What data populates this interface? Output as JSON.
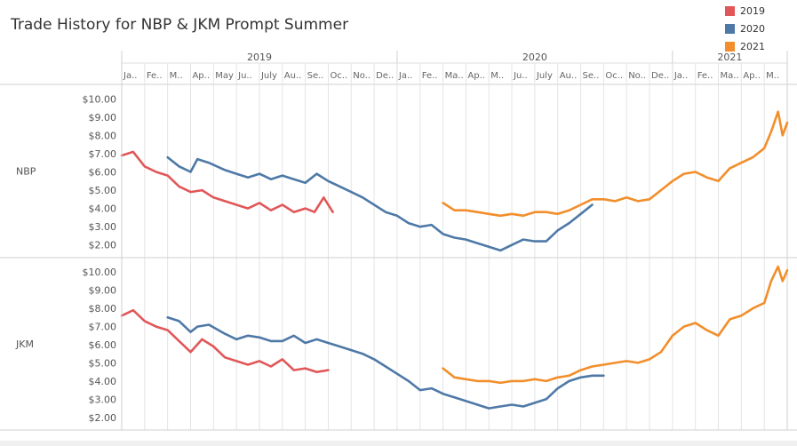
{
  "title": "Trade History for NBP & JKM Prompt Summer",
  "legend": [
    {
      "label": "2019",
      "color": "#e15759"
    },
    {
      "label": "2020",
      "color": "#4e79a7"
    },
    {
      "label": "2021",
      "color": "#f28e2b"
    }
  ],
  "chart_data": {
    "type": "line",
    "title": "Trade History for NBP & JKM Prompt Summer",
    "years": [
      {
        "label": "2019",
        "start": 0,
        "end": 12
      },
      {
        "label": "2020",
        "start": 12,
        "end": 24
      },
      {
        "label": "2021",
        "start": 24,
        "end": 29
      }
    ],
    "x_unit": "month index from January 2019",
    "xlim": [
      0,
      29
    ],
    "month_ticks": [
      "Ja..",
      "Fe..",
      "M..",
      "Ap..",
      "May",
      "Ju..",
      "July",
      "Au..",
      "Se..",
      "Oc..",
      "No..",
      "De..",
      "Ja..",
      "Fe..",
      "Ma..",
      "Ap..",
      "M..",
      "Ju..",
      "July",
      "Au..",
      "Se..",
      "Oc..",
      "No..",
      "De..",
      "Ja..",
      "Fe..",
      "Ma..",
      "Ap..",
      "M.."
    ],
    "ylim": [
      1.5,
      10.5
    ],
    "y_ticks": [
      "$10.00",
      "$9.00",
      "$8.00",
      "$7.00",
      "$6.00",
      "$5.00",
      "$4.00",
      "$3.00",
      "$2.00"
    ],
    "y_tick_values": [
      10,
      9,
      8,
      7,
      6,
      5,
      4,
      3,
      2
    ],
    "grid": true,
    "legend_position": "top-right",
    "panels": [
      {
        "label": "NBP",
        "series": [
          {
            "name": "2019",
            "color": "#e15759",
            "x": [
              0,
              0.5,
              1,
              1.5,
              2,
              2.5,
              3,
              3.5,
              4,
              4.5,
              5,
              5.5,
              6,
              6.5,
              7,
              7.5,
              8,
              8.4,
              8.8,
              9.2
            ],
            "y": [
              6.9,
              7.1,
              6.3,
              6.0,
              5.8,
              5.2,
              4.9,
              5.0,
              4.6,
              4.4,
              4.2,
              4.0,
              4.3,
              3.9,
              4.2,
              3.8,
              4.0,
              3.8,
              4.6,
              3.8
            ]
          },
          {
            "name": "2020",
            "color": "#4e79a7",
            "x": [
              2,
              2.5,
              3,
              3.3,
              3.8,
              4.5,
              5,
              5.5,
              6,
              6.5,
              7,
              7.5,
              8,
              8.5,
              9,
              9.5,
              10,
              10.5,
              11,
              11.5,
              12,
              12.5,
              13,
              13.5,
              14,
              14.5,
              15,
              15.5,
              16,
              16.5,
              17,
              17.5,
              18,
              18.5,
              19,
              19.5,
              20,
              20.5
            ],
            "y": [
              6.8,
              6.3,
              6.0,
              6.7,
              6.5,
              6.1,
              5.9,
              5.7,
              5.9,
              5.6,
              5.8,
              5.6,
              5.4,
              5.9,
              5.5,
              5.2,
              4.9,
              4.6,
              4.2,
              3.8,
              3.6,
              3.2,
              3.0,
              3.1,
              2.6,
              2.4,
              2.3,
              2.1,
              1.9,
              1.7,
              2.0,
              2.3,
              2.2,
              2.2,
              2.8,
              3.2,
              3.7,
              4.2
            ]
          },
          {
            "name": "2021",
            "color": "#f28e2b",
            "x": [
              14,
              14.5,
              15,
              15.5,
              16,
              16.5,
              17,
              17.5,
              18,
              18.5,
              19,
              19.5,
              20,
              20.5,
              21,
              21.5,
              22,
              22.5,
              23,
              23.5,
              24,
              24.5,
              25,
              25.5,
              26,
              26.5,
              27,
              27.5,
              28,
              28.3,
              28.6,
              28.8,
              29
            ],
            "y": [
              4.3,
              3.9,
              3.9,
              3.8,
              3.7,
              3.6,
              3.7,
              3.6,
              3.8,
              3.8,
              3.7,
              3.9,
              4.2,
              4.5,
              4.5,
              4.4,
              4.6,
              4.4,
              4.5,
              5.0,
              5.5,
              5.9,
              6.0,
              5.7,
              5.5,
              6.2,
              6.5,
              6.8,
              7.3,
              8.2,
              9.3,
              8.0,
              8.7
            ]
          }
        ]
      },
      {
        "label": "JKM",
        "series": [
          {
            "name": "2019",
            "color": "#e15759",
            "x": [
              0,
              0.5,
              1,
              1.5,
              2,
              2.5,
              3,
              3.5,
              4,
              4.5,
              5,
              5.5,
              6,
              6.5,
              7,
              7.5,
              8,
              8.5,
              9
            ],
            "y": [
              7.6,
              7.9,
              7.3,
              7.0,
              6.8,
              6.2,
              5.6,
              6.3,
              5.9,
              5.3,
              5.1,
              4.9,
              5.1,
              4.8,
              5.2,
              4.6,
              4.7,
              4.5,
              4.6
            ]
          },
          {
            "name": "2020",
            "color": "#4e79a7",
            "x": [
              2,
              2.5,
              3,
              3.3,
              3.8,
              4.5,
              5,
              5.5,
              6,
              6.5,
              7,
              7.5,
              8,
              8.5,
              9,
              9.5,
              10,
              10.5,
              11,
              11.5,
              12,
              12.5,
              13,
              13.5,
              14,
              14.5,
              15,
              15.5,
              16,
              16.5,
              17,
              17.5,
              18,
              18.5,
              19,
              19.5,
              20,
              20.5,
              21
            ],
            "y": [
              7.5,
              7.3,
              6.7,
              7.0,
              7.1,
              6.6,
              6.3,
              6.5,
              6.4,
              6.2,
              6.2,
              6.5,
              6.1,
              6.3,
              6.1,
              5.9,
              5.7,
              5.5,
              5.2,
              4.8,
              4.4,
              4.0,
              3.5,
              3.6,
              3.3,
              3.1,
              2.9,
              2.7,
              2.5,
              2.6,
              2.7,
              2.6,
              2.8,
              3.0,
              3.6,
              4.0,
              4.2,
              4.3,
              4.3
            ]
          },
          {
            "name": "2021",
            "color": "#f28e2b",
            "x": [
              14,
              14.5,
              15,
              15.5,
              16,
              16.5,
              17,
              17.5,
              18,
              18.5,
              19,
              19.5,
              20,
              20.5,
              21,
              21.5,
              22,
              22.5,
              23,
              23.5,
              24,
              24.5,
              25,
              25.5,
              26,
              26.5,
              27,
              27.5,
              28,
              28.3,
              28.6,
              28.8,
              29
            ],
            "y": [
              4.7,
              4.2,
              4.1,
              4.0,
              4.0,
              3.9,
              4.0,
              4.0,
              4.1,
              4.0,
              4.2,
              4.3,
              4.6,
              4.8,
              4.9,
              5.0,
              5.1,
              5.0,
              5.2,
              5.6,
              6.5,
              7.0,
              7.2,
              6.8,
              6.5,
              7.4,
              7.6,
              8.0,
              8.3,
              9.5,
              10.3,
              9.5,
              10.1
            ]
          }
        ]
      }
    ]
  }
}
